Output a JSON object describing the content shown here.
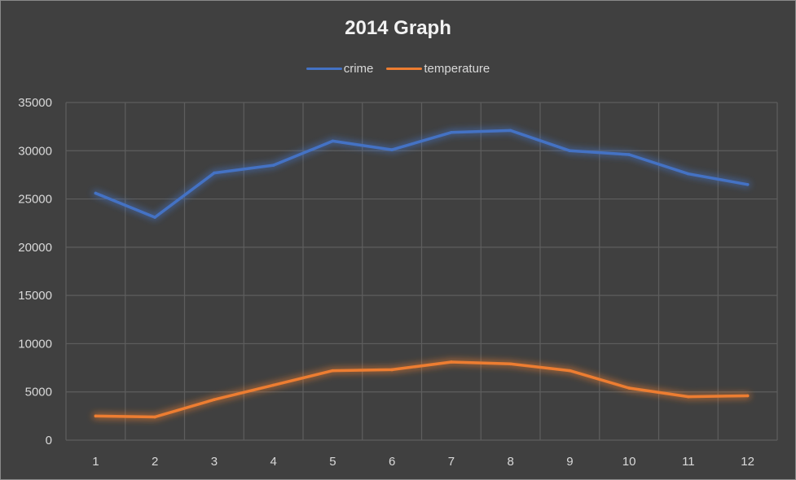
{
  "chart_data": {
    "type": "line",
    "title": "2014 Graph",
    "categories": [
      "1",
      "2",
      "3",
      "4",
      "5",
      "6",
      "7",
      "8",
      "9",
      "10",
      "11",
      "12"
    ],
    "series": [
      {
        "name": "crime",
        "color": "#4472c4",
        "values": [
          25600,
          23100,
          27700,
          28500,
          31000,
          30100,
          31900,
          32100,
          30000,
          29600,
          27600,
          26500
        ]
      },
      {
        "name": "temperature",
        "color": "#ed7d31",
        "values": [
          2500,
          2400,
          4200,
          5700,
          7200,
          7300,
          8100,
          7900,
          7200,
          5400,
          4500,
          4600
        ]
      }
    ],
    "ylim": [
      0,
      35000
    ],
    "yticks": [
      0,
      5000,
      10000,
      15000,
      20000,
      25000,
      30000,
      35000
    ],
    "grid": true,
    "legend_position": "top",
    "xlabel": "",
    "ylabel": ""
  }
}
